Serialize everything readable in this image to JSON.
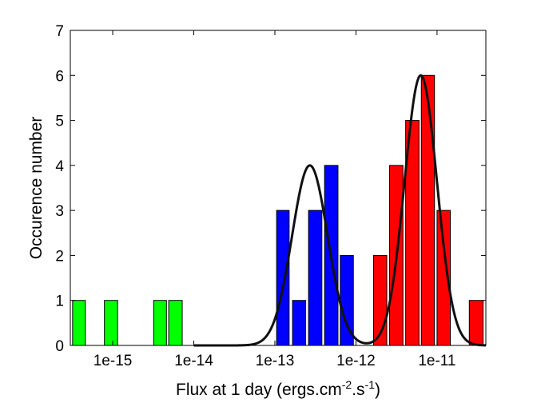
{
  "chart_data": {
    "type": "bar",
    "xlabel": {
      "main": "Flux at 1 day (ergs.cm",
      "sup1": "-2",
      "mid": ".s",
      "sup2": "-1",
      "end": ")"
    },
    "ylabel": "Occurence number",
    "x_scale": "log",
    "xlim": [
      3e-16,
      4e-11
    ],
    "ylim": [
      0,
      7
    ],
    "yticks": [
      0,
      1,
      2,
      3,
      4,
      5,
      6,
      7
    ],
    "xticks": [
      {
        "value": 1e-15,
        "label": "1e-15"
      },
      {
        "value": 1e-14,
        "label": "1e-14"
      },
      {
        "value": 1e-13,
        "label": "1e-13"
      },
      {
        "value": 1e-12,
        "label": "1e-12"
      },
      {
        "value": 1e-11,
        "label": "1e-11"
      }
    ],
    "grid": false,
    "series": [
      {
        "color": "#00ff00",
        "bars": [
          {
            "from": 3.2e-16,
            "to": 4.6e-16,
            "value": 1
          },
          {
            "from": 7.9e-16,
            "to": 1.15e-15,
            "value": 1
          },
          {
            "from": 3.2e-15,
            "to": 4.6e-15,
            "value": 1
          },
          {
            "from": 4.9e-15,
            "to": 7.2e-15,
            "value": 1
          }
        ]
      },
      {
        "color": "#0000ff",
        "bars": [
          {
            "from": 1.05e-13,
            "to": 1.5e-13,
            "value": 3
          },
          {
            "from": 1.65e-13,
            "to": 2.4e-13,
            "value": 1
          },
          {
            "from": 2.6e-13,
            "to": 3.8e-13,
            "value": 3
          },
          {
            "from": 4.1e-13,
            "to": 6e-13,
            "value": 4
          },
          {
            "from": 6.4e-13,
            "to": 9.3e-13,
            "value": 2
          }
        ]
      },
      {
        "color": "#ff0000",
        "bars": [
          {
            "from": 1.65e-12,
            "to": 2.4e-12,
            "value": 2
          },
          {
            "from": 2.6e-12,
            "to": 3.8e-12,
            "value": 4
          },
          {
            "from": 4.1e-12,
            "to": 6e-12,
            "value": 5
          },
          {
            "from": 6.4e-12,
            "to": 9.3e-12,
            "value": 6
          },
          {
            "from": 1e-11,
            "to": 1.46e-11,
            "value": 3
          },
          {
            "from": 2.5e-11,
            "to": 3.7e-11,
            "value": 1
          }
        ]
      }
    ],
    "fits": [
      {
        "color": "#111111",
        "peak_x": 2.7e-13,
        "peak_y": 4,
        "log_sigma": 0.22
      },
      {
        "color": "#111111",
        "peak_x": 6.3e-12,
        "peak_y": 6,
        "log_sigma": 0.2
      }
    ],
    "fit_range": [
      1e-14,
      4e-11
    ]
  }
}
